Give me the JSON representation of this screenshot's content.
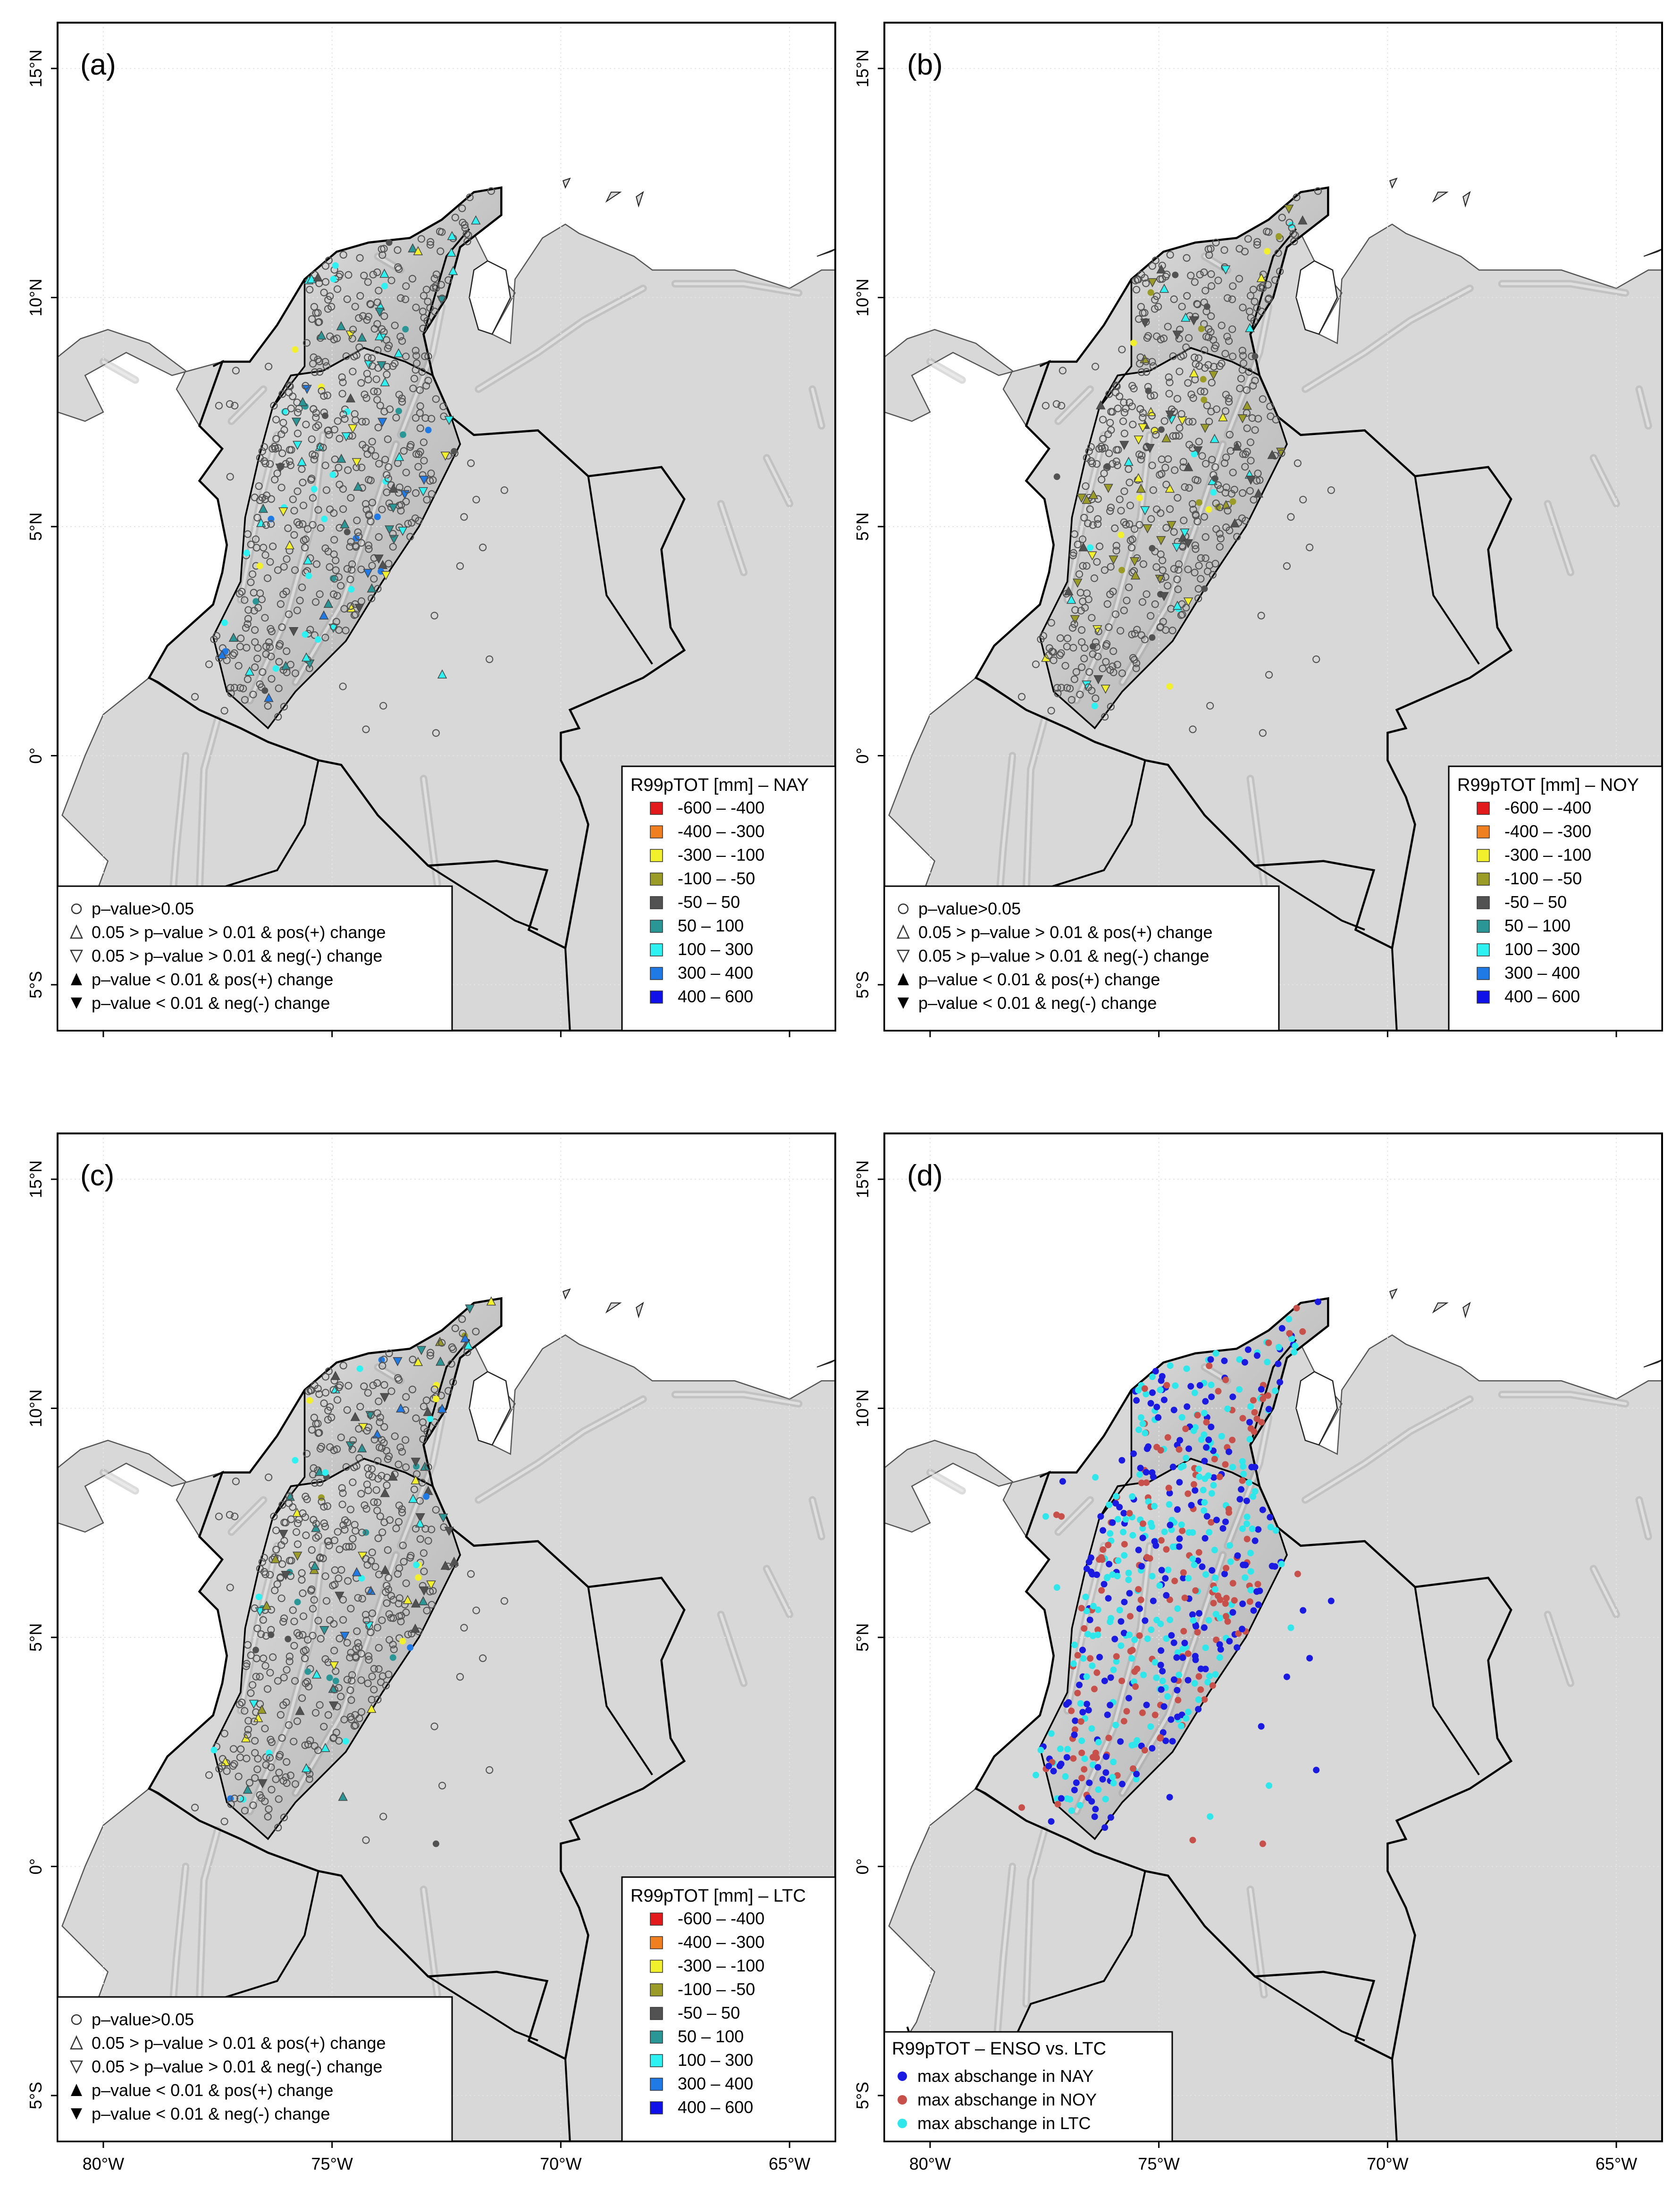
{
  "axes": {
    "lat_labels": [
      "15°N",
      "10°N",
      "5°N",
      "0°",
      "5°S"
    ],
    "lon_labels": [
      "80°W",
      "75°W",
      "70°W",
      "65°W"
    ]
  },
  "legend": {
    "significance_items": [
      {
        "symbol": "circle-open",
        "text": "p–value>0.05"
      },
      {
        "symbol": "triangle-up-open",
        "text": "0.05 > p–value > 0.01 & pos(+) change"
      },
      {
        "symbol": "triangle-down-open",
        "text": "0.05 > p–value > 0.01 & neg(-) change"
      },
      {
        "symbol": "triangle-up-filled",
        "text": "p–value < 0.01 & pos(+) change"
      },
      {
        "symbol": "triangle-down-filled",
        "text": "p–value < 0.01 & neg(-) change"
      }
    ],
    "classes": [
      {
        "label": "-600 – -400",
        "color": "#e31a1c"
      },
      {
        "label": "-400 – -300",
        "color": "#f07f1f"
      },
      {
        "label": "-300 – -100",
        "color": "#f2ef2c"
      },
      {
        "label": "-100 – -50",
        "color": "#9b9b28"
      },
      {
        "label": "-50 – 50",
        "color": "#525252"
      },
      {
        "label": "50 – 100",
        "color": "#2b9696"
      },
      {
        "label": "100 – 300",
        "color": "#2ef1f1"
      },
      {
        "label": "300 – 400",
        "color": "#1f7ae6"
      },
      {
        "label": "400 – 600",
        "color": "#1010e8"
      }
    ]
  },
  "panels": [
    {
      "label": "(a)",
      "legend_title": "R99pTOT [mm] – NAY",
      "type": "significance"
    },
    {
      "label": "(b)",
      "legend_title": "R99pTOT [mm] – NOY",
      "type": "significance"
    },
    {
      "label": "(c)",
      "legend_title": "R99pTOT [mm] – LTC",
      "type": "significance"
    },
    {
      "label": "(d)",
      "legend_title": "R99pTOT – ENSO vs. LTC",
      "type": "comparison",
      "comparison_items": [
        {
          "text": "max abschange in NAY",
          "color": "#1a1ae0"
        },
        {
          "text": "max abschange in NOY",
          "color": "#c8504a"
        },
        {
          "text": "max abschange in LTC",
          "color": "#2fe6ea"
        }
      ]
    }
  ],
  "colors": {
    "land_shading": "#d8d8d8",
    "colombia_relief": "#c4c4c4",
    "border": "#000000",
    "coastline": "#555555",
    "station_open_marker": "#555555"
  }
}
